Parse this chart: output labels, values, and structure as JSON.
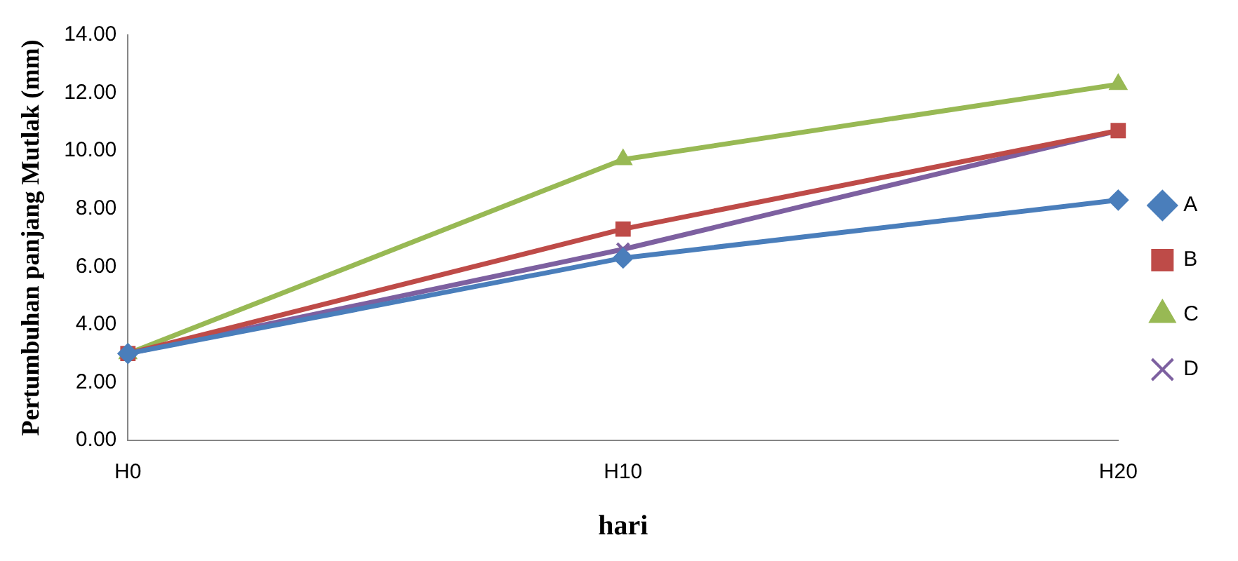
{
  "chart_data": {
    "type": "line",
    "xlabel": "hari",
    "ylabel": "Pertumbuhan panjang Mutlak (mm)",
    "categories": [
      "H0",
      "H10",
      "H20"
    ],
    "series": [
      {
        "name": "A",
        "color": "#4a7ebb",
        "marker": "diamond",
        "values": [
          3.0,
          6.3,
          8.3
        ]
      },
      {
        "name": "B",
        "color": "#be4b48",
        "marker": "square",
        "values": [
          3.0,
          7.3,
          10.7
        ]
      },
      {
        "name": "C",
        "color": "#98b954",
        "marker": "triangle",
        "values": [
          3.0,
          9.7,
          12.3
        ]
      },
      {
        "name": "D",
        "color": "#7d60a0",
        "marker": "cross",
        "values": [
          3.0,
          6.6,
          10.7
        ]
      }
    ],
    "ylim": [
      0,
      14
    ],
    "yticks": [
      {
        "value": 0,
        "label": "0.00"
      },
      {
        "value": 2,
        "label": "2.00"
      },
      {
        "value": 4,
        "label": "4.00"
      },
      {
        "value": 6,
        "label": "6.00"
      },
      {
        "value": 8,
        "label": "8.00"
      },
      {
        "value": 10,
        "label": "10.00"
      },
      {
        "value": 12,
        "label": "12.00"
      },
      {
        "value": 14,
        "label": "14.00"
      }
    ],
    "grid": false,
    "legend": "right",
    "line_style": "solid"
  }
}
